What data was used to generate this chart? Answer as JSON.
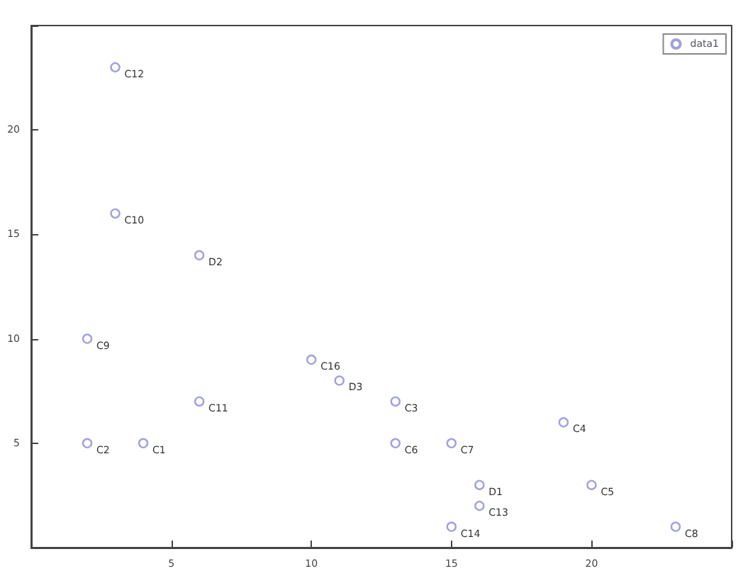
{
  "chart_data": {
    "type": "scatter",
    "marker": "circle",
    "legend": "top right",
    "grid": false,
    "x": [
      3,
      3,
      6,
      2,
      6,
      2,
      4,
      10,
      11,
      13,
      13,
      15,
      19,
      16,
      16,
      20,
      15,
      23
    ],
    "series": [
      {
        "name": "data1",
        "color": "#8a8ad8",
        "values": [
          23,
          16,
          14,
          10,
          7,
          5,
          5,
          9,
          8,
          7,
          5,
          5,
          6,
          3,
          2,
          3,
          1,
          1
        ]
      }
    ],
    "xlim": [
      0,
      25
    ],
    "xticks": [
      {
        "value": 0,
        "label": null
      },
      5,
      10,
      15,
      20,
      {
        "value": 25,
        "label": null
      }
    ],
    "ylim": [
      0,
      25
    ],
    "yticks": [
      {
        "value": 0,
        "label": null
      },
      5,
      10,
      15,
      20,
      {
        "value": 25,
        "label": null
      }
    ],
    "annotations": [
      {
        "text": "C12",
        "x": 3,
        "y": 23
      },
      {
        "text": "C10",
        "x": 3,
        "y": 16
      },
      {
        "text": "D2",
        "x": 6,
        "y": 14
      },
      {
        "text": "C9",
        "x": 2,
        "y": 10
      },
      {
        "text": "C11",
        "x": 6,
        "y": 7
      },
      {
        "text": "C2",
        "x": 2,
        "y": 5
      },
      {
        "text": "C1",
        "x": 4,
        "y": 5
      },
      {
        "text": "C16",
        "x": 10,
        "y": 9
      },
      {
        "text": "D3",
        "x": 11,
        "y": 8
      },
      {
        "text": "C3",
        "x": 13,
        "y": 7
      },
      {
        "text": "C6",
        "x": 13,
        "y": 5
      },
      {
        "text": "C7",
        "x": 15,
        "y": 5
      },
      {
        "text": "C4",
        "x": 19,
        "y": 6
      },
      {
        "text": "D1",
        "x": 16,
        "y": 3
      },
      {
        "text": "C13",
        "x": 16,
        "y": 2
      },
      {
        "text": "C5",
        "x": 20,
        "y": 3
      },
      {
        "text": "C14",
        "x": 15,
        "y": 1
      },
      {
        "text": "C8",
        "x": 23,
        "y": 1
      }
    ]
  }
}
